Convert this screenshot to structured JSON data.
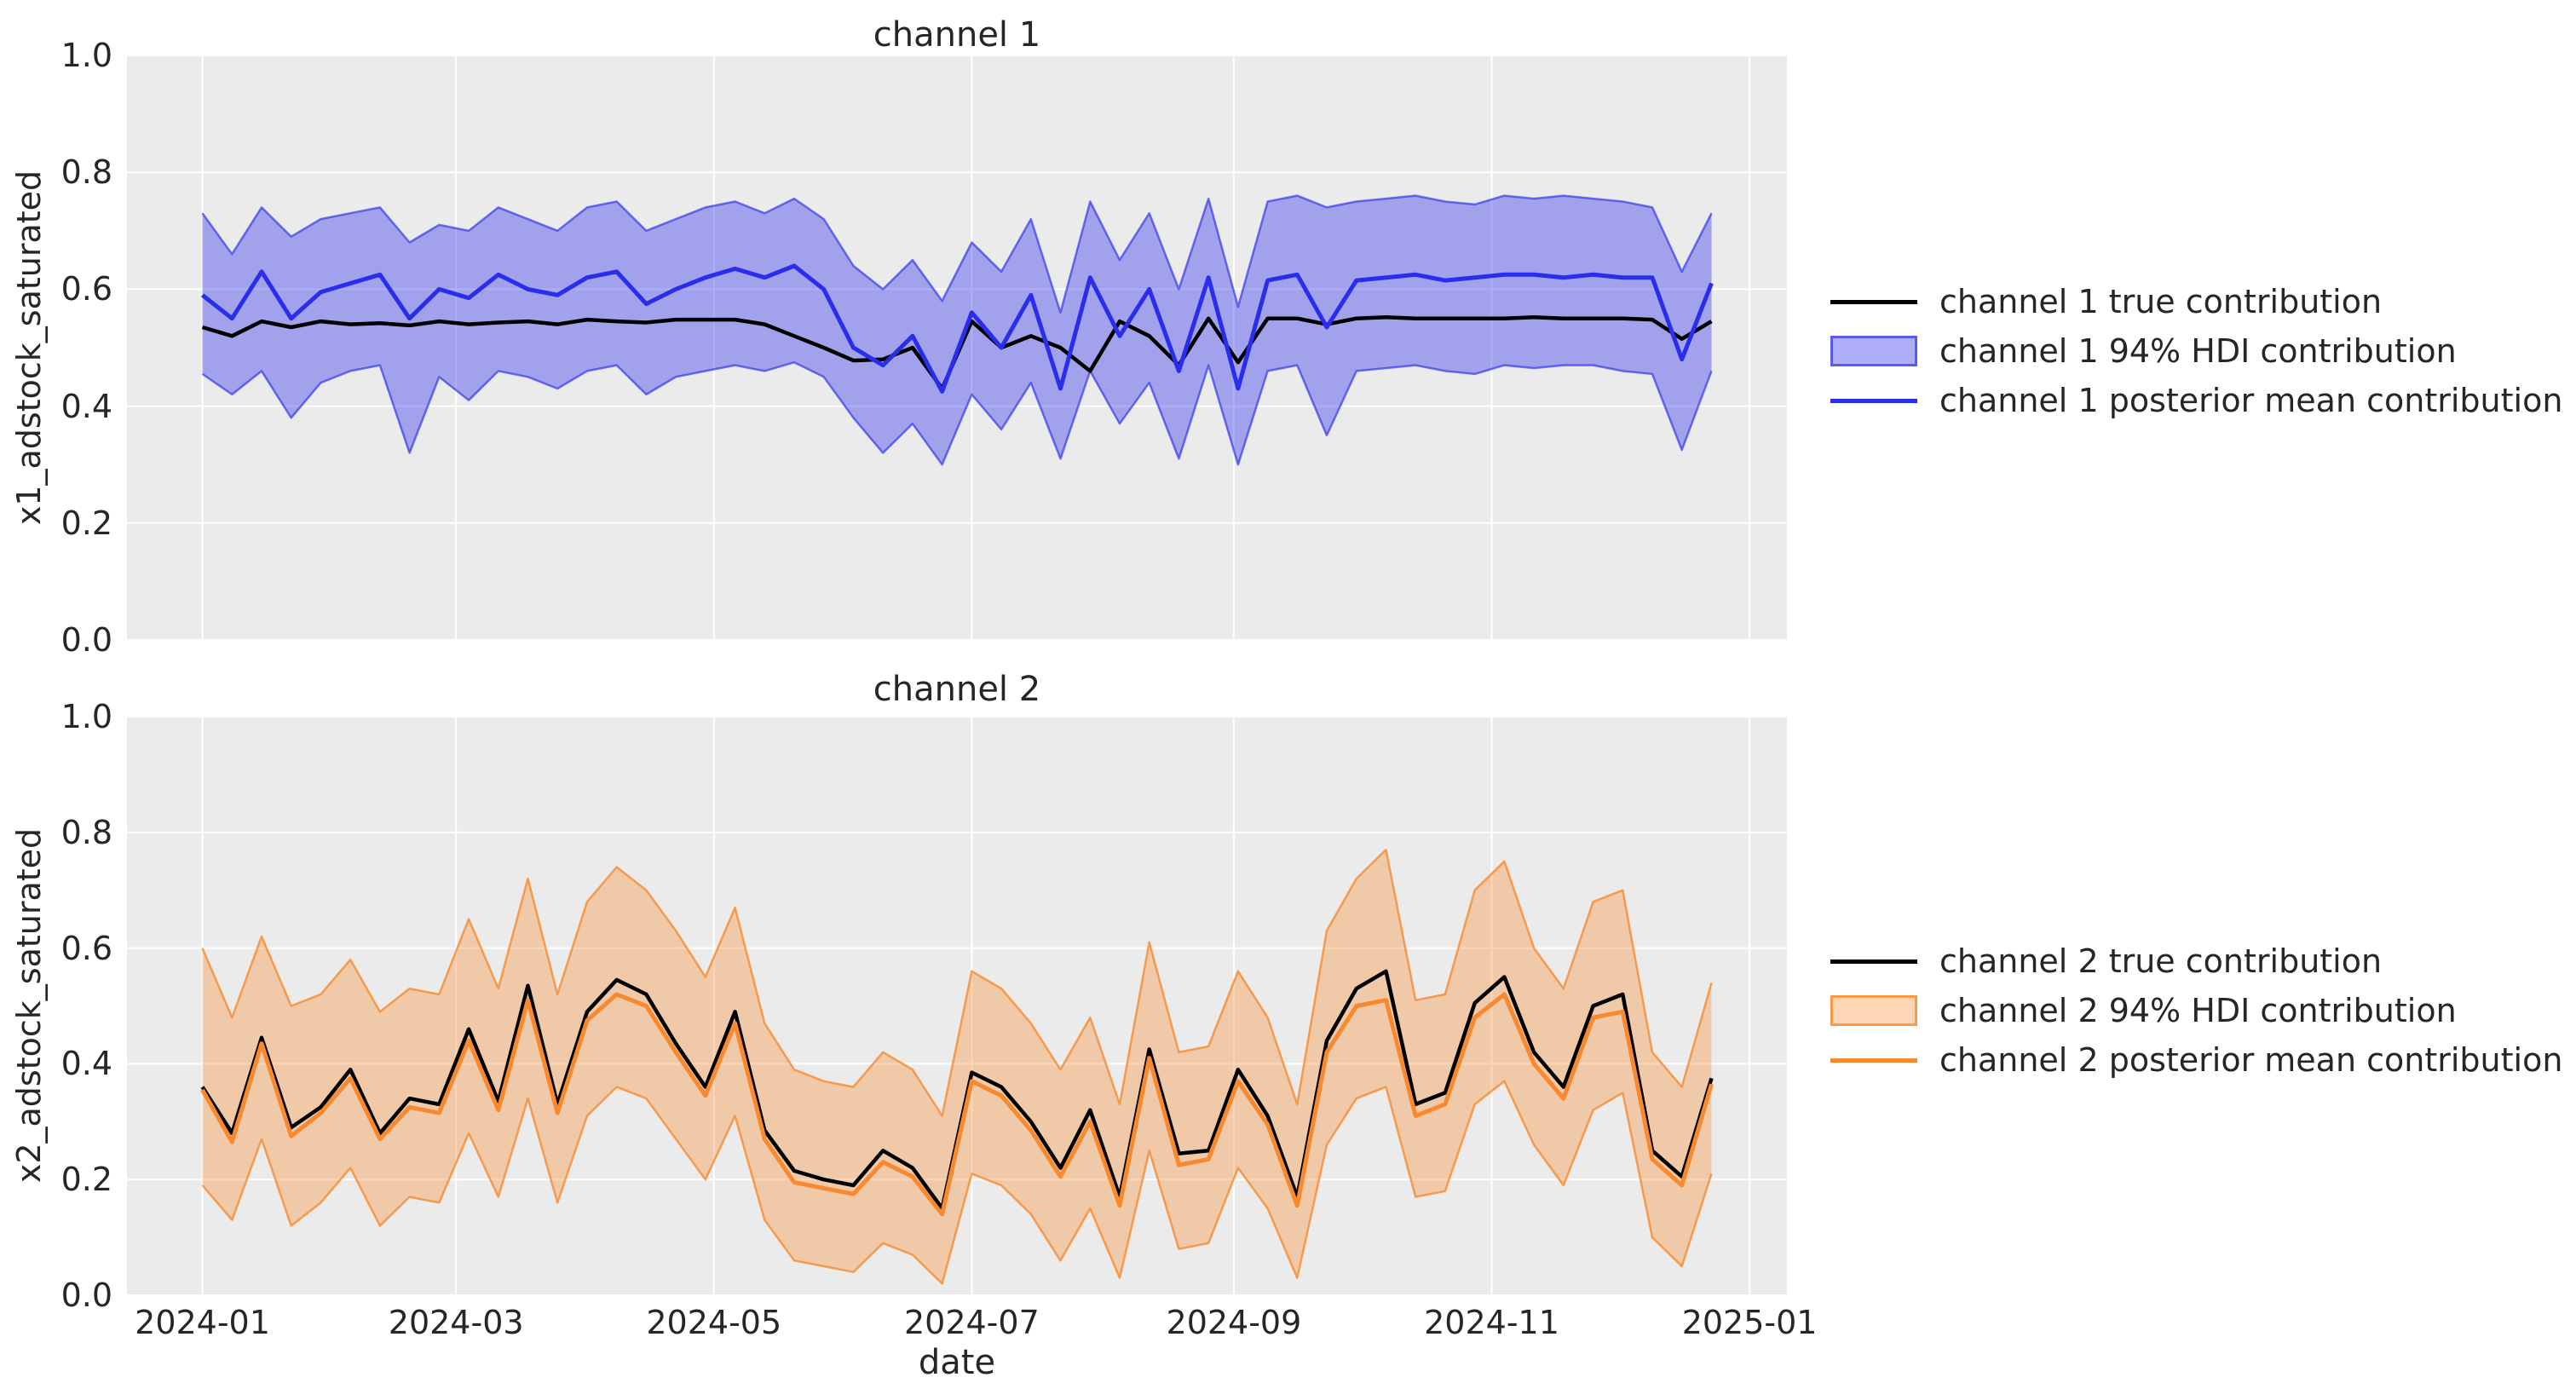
{
  "figure": {
    "background": "#ffffff",
    "plot_background": "#ebebeb",
    "grid_color": "#ffffff",
    "text_color": "#262626"
  },
  "x_axis": {
    "label": "date",
    "domain_days": [
      -17.85,
      374.85
    ],
    "ticks": [
      {
        "label": "2024-01",
        "day": 0
      },
      {
        "label": "2024-03",
        "day": 60
      },
      {
        "label": "2024-05",
        "day": 121
      },
      {
        "label": "2024-07",
        "day": 182
      },
      {
        "label": "2024-09",
        "day": 244
      },
      {
        "label": "2024-11",
        "day": 305
      },
      {
        "label": "2025-01",
        "day": 366
      }
    ]
  },
  "y_axis": {
    "domain": [
      0,
      1
    ],
    "ticks": [
      "0.0",
      "0.2",
      "0.4",
      "0.6",
      "0.8",
      "1.0"
    ]
  },
  "charts": [
    {
      "title": "channel 1",
      "ylabel": "x1_adstock_saturated",
      "colors": {
        "true_line": "#000000",
        "line": "#2a2eec",
        "band_fill": "rgba(42,46,236,0.38)",
        "band_edge": "rgba(42,46,236,0.65)"
      },
      "legend": [
        {
          "kind": "line",
          "color": "#000000",
          "label": "channel 1 true contribution"
        },
        {
          "kind": "patch",
          "fill": "rgba(42,46,236,0.38)",
          "edge": "rgba(42,46,236,0.65)",
          "label": "channel 1 94% HDI contribution"
        },
        {
          "kind": "line",
          "color": "#2a2eec",
          "label": "channel 1 posterior mean contribution"
        }
      ],
      "chart_data": {
        "type": "line",
        "x_start_date": "2024-01-01",
        "x_step_days": 7,
        "ylim": [
          0,
          1
        ],
        "grid": true,
        "legend_position": "right",
        "x_days": [
          0,
          7,
          14,
          21,
          28,
          35,
          42,
          49,
          56,
          63,
          70,
          77,
          84,
          91,
          98,
          105,
          112,
          119,
          126,
          133,
          140,
          147,
          154,
          161,
          168,
          175,
          182,
          189,
          196,
          203,
          210,
          217,
          224,
          231,
          238,
          245,
          252,
          259,
          266,
          273,
          280,
          287,
          294,
          301,
          308,
          315,
          322,
          329,
          336,
          343,
          350,
          357
        ],
        "series": [
          {
            "name": "channel 1 true contribution",
            "values": [
              0.535,
              0.52,
              0.545,
              0.535,
              0.545,
              0.54,
              0.542,
              0.538,
              0.545,
              0.54,
              0.543,
              0.545,
              0.54,
              0.548,
              0.545,
              0.543,
              0.548,
              0.548,
              0.548,
              0.54,
              0.52,
              0.5,
              0.478,
              0.48,
              0.5,
              0.43,
              0.545,
              0.5,
              0.52,
              0.5,
              0.46,
              0.545,
              0.52,
              0.47,
              0.55,
              0.475,
              0.55,
              0.55,
              0.54,
              0.55,
              0.552,
              0.55,
              0.55,
              0.55,
              0.55,
              0.552,
              0.55,
              0.55,
              0.55,
              0.548,
              0.515,
              0.545
            ]
          },
          {
            "name": "channel 1 94% HDI contribution",
            "upper": [
              0.73,
              0.66,
              0.74,
              0.69,
              0.72,
              0.73,
              0.74,
              0.68,
              0.71,
              0.7,
              0.74,
              0.72,
              0.7,
              0.74,
              0.75,
              0.7,
              0.72,
              0.74,
              0.75,
              0.73,
              0.755,
              0.72,
              0.64,
              0.6,
              0.65,
              0.58,
              0.68,
              0.63,
              0.72,
              0.56,
              0.75,
              0.65,
              0.73,
              0.6,
              0.755,
              0.57,
              0.75,
              0.76,
              0.74,
              0.75,
              0.755,
              0.76,
              0.75,
              0.745,
              0.76,
              0.755,
              0.76,
              0.755,
              0.75,
              0.74,
              0.63,
              0.73
            ],
            "lower": [
              0.455,
              0.42,
              0.46,
              0.38,
              0.44,
              0.46,
              0.47,
              0.32,
              0.45,
              0.41,
              0.46,
              0.45,
              0.43,
              0.46,
              0.47,
              0.42,
              0.45,
              0.46,
              0.47,
              0.46,
              0.475,
              0.45,
              0.38,
              0.32,
              0.37,
              0.3,
              0.42,
              0.36,
              0.44,
              0.31,
              0.46,
              0.37,
              0.44,
              0.31,
              0.47,
              0.3,
              0.46,
              0.47,
              0.35,
              0.46,
              0.465,
              0.47,
              0.46,
              0.455,
              0.47,
              0.465,
              0.47,
              0.47,
              0.46,
              0.455,
              0.325,
              0.46
            ]
          },
          {
            "name": "channel 1 posterior mean contribution",
            "values": [
              0.59,
              0.55,
              0.63,
              0.55,
              0.595,
              0.61,
              0.625,
              0.55,
              0.6,
              0.585,
              0.625,
              0.6,
              0.59,
              0.62,
              0.63,
              0.575,
              0.6,
              0.62,
              0.635,
              0.62,
              0.64,
              0.6,
              0.5,
              0.47,
              0.52,
              0.425,
              0.56,
              0.5,
              0.59,
              0.43,
              0.62,
              0.52,
              0.6,
              0.46,
              0.62,
              0.43,
              0.615,
              0.625,
              0.535,
              0.615,
              0.62,
              0.625,
              0.615,
              0.62,
              0.625,
              0.625,
              0.62,
              0.625,
              0.62,
              0.62,
              0.48,
              0.61
            ]
          }
        ]
      }
    },
    {
      "title": "channel 2",
      "ylabel": "x2_adstock_saturated",
      "colors": {
        "true_line": "#000000",
        "line": "#f8892e",
        "band_fill": "rgba(248,137,46,0.35)",
        "band_edge": "rgba(248,137,46,0.8)"
      },
      "legend": [
        {
          "kind": "line",
          "color": "#000000",
          "label": "channel 2 true contribution"
        },
        {
          "kind": "patch",
          "fill": "rgba(248,137,46,0.35)",
          "edge": "rgba(248,137,46,0.8)",
          "label": "channel 2 94% HDI contribution"
        },
        {
          "kind": "line",
          "color": "#f8892e",
          "label": "channel 2 posterior mean contribution"
        }
      ],
      "chart_data": {
        "type": "line",
        "x_start_date": "2024-01-01",
        "x_step_days": 7,
        "ylim": [
          0,
          1
        ],
        "grid": true,
        "legend_position": "right",
        "x_days": [
          0,
          7,
          14,
          21,
          28,
          35,
          42,
          49,
          56,
          63,
          70,
          77,
          84,
          91,
          98,
          105,
          112,
          119,
          126,
          133,
          140,
          147,
          154,
          161,
          168,
          175,
          182,
          189,
          196,
          203,
          210,
          217,
          224,
          231,
          238,
          245,
          252,
          259,
          266,
          273,
          280,
          287,
          294,
          301,
          308,
          315,
          322,
          329,
          336,
          343,
          350,
          357
        ],
        "series": [
          {
            "name": "channel 2 true contribution",
            "values": [
              0.36,
              0.28,
              0.445,
              0.29,
              0.325,
              0.39,
              0.28,
              0.34,
              0.33,
              0.46,
              0.335,
              0.535,
              0.33,
              0.49,
              0.545,
              0.52,
              0.435,
              0.36,
              0.49,
              0.285,
              0.215,
              0.2,
              0.19,
              0.25,
              0.22,
              0.15,
              0.385,
              0.36,
              0.3,
              0.22,
              0.32,
              0.17,
              0.425,
              0.245,
              0.25,
              0.39,
              0.31,
              0.17,
              0.44,
              0.53,
              0.56,
              0.33,
              0.35,
              0.505,
              0.55,
              0.42,
              0.36,
              0.5,
              0.52,
              0.25,
              0.205,
              0.375
            ]
          },
          {
            "name": "channel 2 94% HDI contribution",
            "upper": [
              0.6,
              0.48,
              0.62,
              0.5,
              0.52,
              0.58,
              0.49,
              0.53,
              0.52,
              0.65,
              0.53,
              0.72,
              0.52,
              0.68,
              0.74,
              0.7,
              0.63,
              0.55,
              0.67,
              0.47,
              0.39,
              0.37,
              0.36,
              0.42,
              0.39,
              0.31,
              0.56,
              0.53,
              0.47,
              0.39,
              0.48,
              0.33,
              0.61,
              0.42,
              0.43,
              0.56,
              0.48,
              0.33,
              0.63,
              0.72,
              0.77,
              0.51,
              0.52,
              0.7,
              0.75,
              0.6,
              0.53,
              0.68,
              0.7,
              0.42,
              0.36,
              0.54
            ],
            "lower": [
              0.19,
              0.13,
              0.27,
              0.12,
              0.16,
              0.22,
              0.12,
              0.17,
              0.16,
              0.28,
              0.17,
              0.34,
              0.16,
              0.31,
              0.36,
              0.34,
              0.27,
              0.2,
              0.31,
              0.13,
              0.06,
              0.05,
              0.04,
              0.09,
              0.07,
              0.02,
              0.21,
              0.19,
              0.14,
              0.06,
              0.15,
              0.03,
              0.25,
              0.08,
              0.09,
              0.22,
              0.15,
              0.03,
              0.26,
              0.34,
              0.36,
              0.17,
              0.18,
              0.33,
              0.37,
              0.26,
              0.19,
              0.32,
              0.35,
              0.1,
              0.05,
              0.21
            ]
          },
          {
            "name": "channel 2 posterior mean contribution",
            "values": [
              0.355,
              0.265,
              0.435,
              0.275,
              0.315,
              0.375,
              0.27,
              0.325,
              0.315,
              0.44,
              0.32,
              0.51,
              0.315,
              0.475,
              0.52,
              0.5,
              0.42,
              0.345,
              0.47,
              0.27,
              0.195,
              0.185,
              0.175,
              0.23,
              0.205,
              0.14,
              0.37,
              0.345,
              0.285,
              0.205,
              0.3,
              0.155,
              0.41,
              0.225,
              0.235,
              0.37,
              0.295,
              0.155,
              0.42,
              0.5,
              0.51,
              0.31,
              0.33,
              0.48,
              0.52,
              0.4,
              0.34,
              0.48,
              0.49,
              0.235,
              0.19,
              0.365
            ]
          }
        ]
      }
    }
  ]
}
